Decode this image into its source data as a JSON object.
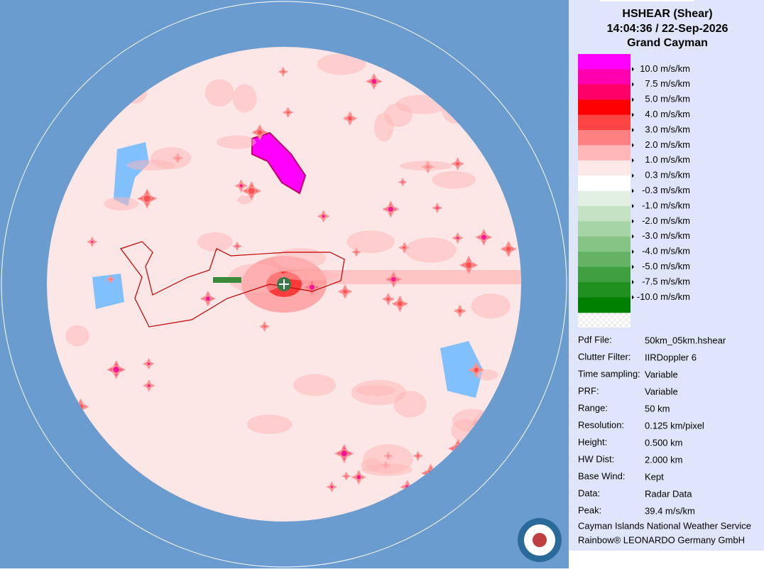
{
  "header": {
    "product": "HSHEAR (Shear)",
    "timestamp": "14:04:36 / 22-Sep-2026",
    "site": "Grand Cayman"
  },
  "legend": {
    "labels": [
      "10.0 m/s/km",
      "7.5 m/s/km",
      "5.0 m/s/km",
      "4.0 m/s/km",
      "3.0 m/s/km",
      "2.0 m/s/km",
      "1.0 m/s/km",
      "0.3 m/s/km",
      "-0.3 m/s/km",
      "-1.0 m/s/km",
      "-2.0 m/s/km",
      "-3.0 m/s/km",
      "-4.0 m/s/km",
      "-5.0 m/s/km",
      "-7.5 m/s/km",
      "-10.0 m/s/km"
    ],
    "colors": [
      "#ff00ff",
      "#ff00b0",
      "#ff0068",
      "#ff0000",
      "#ff4444",
      "#ff8080",
      "#ffb6b6",
      "#ffe8e8",
      "#ffffff",
      "#e2f0e2",
      "#c4e2c4",
      "#a6d4a6",
      "#86c486",
      "#64b264",
      "#40a040",
      "#209020",
      "#008000"
    ]
  },
  "info": {
    "rows": [
      [
        "Pdf File:",
        "50km_05km.hshear"
      ],
      [
        "Clutter Filter:",
        "IIRDoppler 6"
      ],
      [
        "Time sampling:",
        "Variable"
      ],
      [
        "PRF:",
        "Variable"
      ],
      [
        "Range:",
        "50 km"
      ],
      [
        "Resolution:",
        "0.125 km/pixel"
      ],
      [
        "Height:",
        "0.500 km"
      ],
      [
        "HW Dist:",
        "2.000 km"
      ],
      [
        "Base Wind:",
        "Kept"
      ],
      [
        "Data:",
        "Radar Data"
      ],
      [
        "Peak:",
        "39.4 m/s/km"
      ]
    ]
  },
  "footer": [
    "Cayman Islands National Weather Service",
    "Rainbow® LEONARDO Germany GmbH"
  ]
}
